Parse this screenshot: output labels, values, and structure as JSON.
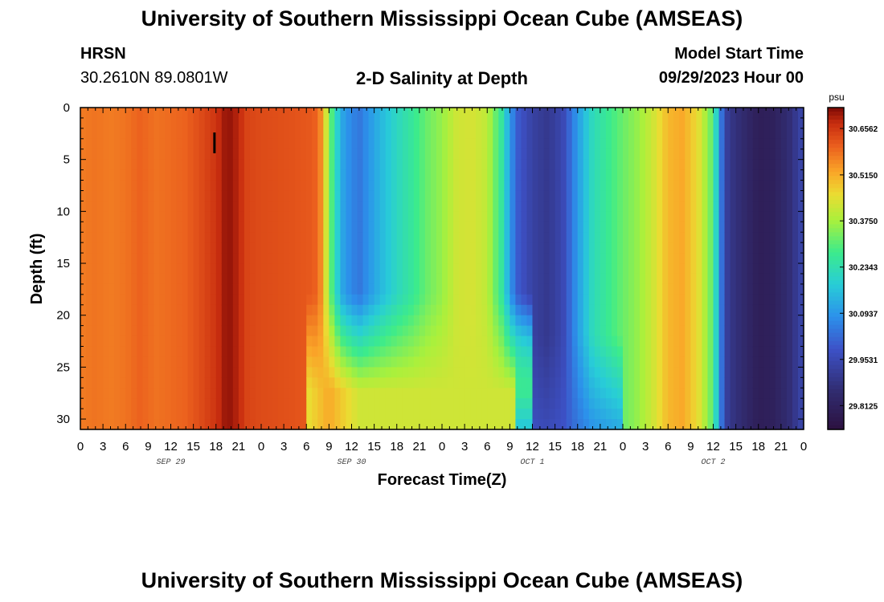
{
  "header": {
    "title": "University of Southern Mississippi Ocean Cube (AMSEAS)",
    "station": "HRSN",
    "coords": "30.2610N  89.0801W",
    "subtitle": "2-D Salinity at Depth",
    "model_start_label": "Model Start Time",
    "model_start_value": "09/29/2023 Hour 00"
  },
  "footer": {
    "title": "University of Southern Mississippi Ocean Cube (AMSEAS)"
  },
  "chart_data": {
    "type": "heatmap",
    "title": "2-D Salinity at Depth",
    "xlabel": "Forecast Time(Z)",
    "ylabel": "Depth (ft)",
    "x_range_hours": [
      0,
      96
    ],
    "x_ticks": [
      "0",
      "3",
      "6",
      "9",
      "12",
      "15",
      "18",
      "21",
      "0",
      "3",
      "6",
      "9",
      "12",
      "15",
      "18",
      "21",
      "0",
      "3",
      "6",
      "9",
      "12",
      "15",
      "18",
      "21",
      "0",
      "3",
      "6",
      "9",
      "12",
      "15",
      "18",
      "21",
      "0"
    ],
    "day_labels": [
      "SEP 29",
      "SEP 30",
      "OCT 1",
      "OCT 2"
    ],
    "y_range_ft": [
      0,
      31
    ],
    "y_ticks": [
      0,
      5,
      10,
      15,
      20,
      25,
      30
    ],
    "y_inverted": true,
    "colorbar": {
      "unit": "psu",
      "range": [
        29.74,
        30.72
      ],
      "tick_labels": [
        "30.6562",
        "30.5150",
        "30.3750",
        "30.2343",
        "30.0937",
        "29.9531",
        "29.8125"
      ],
      "tick_values": [
        30.6562,
        30.515,
        30.375,
        30.2343,
        30.0937,
        29.9531,
        29.8125
      ],
      "colormap": "turbo"
    },
    "surface_salinity_by_hour": [
      [
        0,
        30.57
      ],
      [
        2,
        30.58
      ],
      [
        4,
        30.57
      ],
      [
        6,
        30.58
      ],
      [
        8,
        30.6
      ],
      [
        10,
        30.58
      ],
      [
        12,
        30.59
      ],
      [
        14,
        30.6
      ],
      [
        16,
        30.63
      ],
      [
        18,
        30.66
      ],
      [
        19.5,
        30.71
      ],
      [
        21,
        30.68
      ],
      [
        22,
        30.64
      ],
      [
        24,
        30.63
      ],
      [
        28,
        30.62
      ],
      [
        31,
        30.61
      ],
      [
        32,
        30.55
      ],
      [
        33,
        30.35
      ],
      [
        34,
        30.2
      ],
      [
        35,
        30.1
      ],
      [
        37,
        30.04
      ],
      [
        38,
        30.08
      ],
      [
        40,
        30.15
      ],
      [
        42,
        30.21
      ],
      [
        44,
        30.26
      ],
      [
        46,
        30.32
      ],
      [
        48,
        30.36
      ],
      [
        50,
        30.42
      ],
      [
        52,
        30.43
      ],
      [
        54,
        30.4
      ],
      [
        56,
        30.25
      ],
      [
        57,
        30.1
      ],
      [
        58,
        30.0
      ],
      [
        60,
        29.93
      ],
      [
        62,
        29.9
      ],
      [
        64,
        29.95
      ],
      [
        66,
        30.1
      ],
      [
        68,
        30.22
      ],
      [
        70,
        30.27
      ],
      [
        72,
        30.32
      ],
      [
        74,
        30.36
      ],
      [
        76,
        30.42
      ],
      [
        78,
        30.5
      ],
      [
        80,
        30.52
      ],
      [
        82,
        30.45
      ],
      [
        84,
        30.3
      ],
      [
        85,
        30.05
      ],
      [
        86,
        29.9
      ],
      [
        88,
        29.85
      ],
      [
        90,
        29.8
      ],
      [
        92,
        29.81
      ],
      [
        94,
        29.86
      ],
      [
        96,
        29.95
      ]
    ],
    "annotation_marker_hour": 17.8
  }
}
